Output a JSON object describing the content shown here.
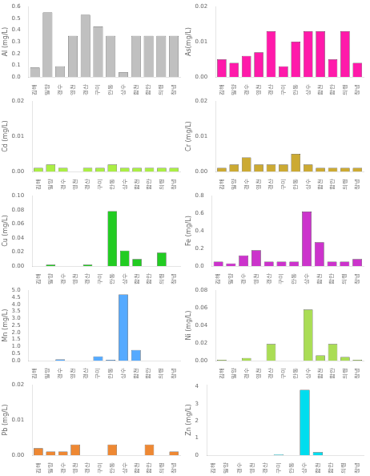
{
  "chart_data": [
    {
      "type": "bar",
      "ylabel": "Al (mg/L)",
      "categories": [
        "김해",
        "밀양",
        "경수",
        "영천",
        "경산",
        "구미",
        "안동",
        "상수",
        "합천",
        "함안",
        "의령",
        "창녕"
      ],
      "values": [
        0.08,
        0.55,
        0.09,
        0.35,
        0.53,
        0.43,
        0.35,
        0.04,
        0.35,
        0.35,
        0.35,
        0.35
      ],
      "color": "#c0c0c0",
      "ylim": [
        0,
        0.6
      ],
      "yticks": [
        {
          "value": 0.0,
          "label": "0.0"
        },
        0.1,
        0.2,
        0.3,
        0.4,
        0.5,
        0.6
      ],
      "grid": false
    },
    {
      "type": "bar",
      "ylabel": "As(mg/L)",
      "categories": [
        "김해",
        "밀양",
        "경수",
        "영천",
        "경산",
        "구미",
        "안동",
        "상수",
        "합천",
        "함안",
        "의령",
        "창녕"
      ],
      "values": [
        0.005,
        0.004,
        0.006,
        0.007,
        0.013,
        0.003,
        0.01,
        0.013,
        0.013,
        0.005,
        0.013,
        0.004
      ],
      "color": "#ff1aaa",
      "ylim": [
        0,
        0.02
      ],
      "yticks": [
        {
          "value": 0.0,
          "label": "0.00"
        },
        0.01,
        0.02
      ],
      "grid": false
    },
    {
      "type": "bar",
      "ylabel": "Cd (mg/L)",
      "categories": [
        "김해",
        "밀양",
        "경수",
        "영천",
        "경산",
        "구미",
        "안동",
        "상수",
        "합천",
        "함안",
        "의령",
        "창녕"
      ],
      "values": [
        0.001,
        0.002,
        0.001,
        0.0,
        0.001,
        0.001,
        0.002,
        0.001,
        0.001,
        0.001,
        0.001,
        0.001
      ],
      "color": "#aaee44",
      "ylim": [
        0,
        0.02
      ],
      "yticks": [
        {
          "value": 0.0,
          "label": "0.00"
        },
        0.01,
        0.02
      ],
      "grid": false
    },
    {
      "type": "bar",
      "ylabel": "Cr (mg/L)",
      "categories": [
        "김해",
        "밀양",
        "경수",
        "영천",
        "경산",
        "구미",
        "안동",
        "상수",
        "합천",
        "함안",
        "의령",
        "창녕"
      ],
      "values": [
        0.001,
        0.002,
        0.004,
        0.002,
        0.002,
        0.002,
        0.005,
        0.002,
        0.001,
        0.001,
        0.001,
        0.001
      ],
      "color": "#ccaa33",
      "ylim": [
        0,
        0.02
      ],
      "yticks": [
        {
          "value": 0.0,
          "label": "0.00"
        },
        0.01,
        0.02
      ],
      "grid": false
    },
    {
      "type": "bar",
      "ylabel": "Cu (mg/L)",
      "categories": [
        "김해",
        "밀양",
        "경수",
        "영천",
        "경산",
        "구미",
        "안동",
        "상수",
        "합천",
        "함안",
        "의령",
        "창녕"
      ],
      "values": [
        0.0,
        0.002,
        0.0,
        0.0,
        0.002,
        0.0,
        0.078,
        0.022,
        0.01,
        0.0,
        0.019,
        0.0
      ],
      "color": "#22cc22",
      "ylim": [
        0,
        0.1
      ],
      "yticks": [
        {
          "value": 0.0,
          "label": "0.00"
        },
        0.02,
        0.04,
        0.06,
        0.08,
        {
          "value": 0.1,
          "label": "0.10"
        }
      ],
      "grid": false
    },
    {
      "type": "bar",
      "ylabel": "Fe (mg/L)",
      "categories": [
        "김해",
        "밀양",
        "경수",
        "영천",
        "경산",
        "구미",
        "안동",
        "상수",
        "합천",
        "함안",
        "의령",
        "창녕"
      ],
      "values": [
        0.05,
        0.03,
        0.12,
        0.18,
        0.05,
        0.05,
        0.05,
        0.62,
        0.27,
        0.05,
        0.05,
        0.08
      ],
      "color": "#cc33cc",
      "ylim": [
        0,
        0.8
      ],
      "yticks": [
        {
          "value": 0.0,
          "label": "0.0"
        },
        0.2,
        0.4,
        0.6,
        0.8
      ],
      "grid": false
    },
    {
      "type": "bar",
      "ylabel": "Mn (mg/L)",
      "categories": [
        "김해",
        "밀양",
        "경수",
        "영천",
        "경산",
        "구미",
        "안동",
        "상수",
        "합천",
        "함안",
        "의령",
        "창녕"
      ],
      "values": [
        0.0,
        0.0,
        0.08,
        0.0,
        0.0,
        0.3,
        0.05,
        4.7,
        0.75,
        0.0,
        0.0,
        0.0
      ],
      "color": "#55aaff",
      "ylim": [
        0,
        5.0
      ],
      "yticks": [
        {
          "value": 0.0,
          "label": "0.0"
        },
        0.5,
        {
          "value": 1.0,
          "label": "1.0"
        },
        1.5,
        {
          "value": 2.0,
          "label": "2.0"
        },
        2.5,
        {
          "value": 3.0,
          "label": "3.0"
        },
        3.5,
        {
          "value": 4.0,
          "label": "4.0"
        },
        4.5,
        {
          "value": 5.0,
          "label": "5.0"
        }
      ],
      "grid": false
    },
    {
      "type": "bar",
      "ylabel": "Ni (mg/L)",
      "categories": [
        "김해",
        "밀양",
        "경수",
        "영천",
        "경산",
        "구미",
        "안동",
        "상수",
        "합천",
        "함안",
        "의령",
        "창녕"
      ],
      "values": [
        0.001,
        0.0,
        0.003,
        0.0,
        0.019,
        0.0,
        0.0,
        0.058,
        0.006,
        0.019,
        0.004,
        0.001
      ],
      "color": "#aadd55",
      "ylim": [
        0,
        0.08
      ],
      "yticks": [
        {
          "value": 0.0,
          "label": "0.00"
        },
        0.02,
        0.04,
        0.06,
        0.08
      ],
      "grid": false
    },
    {
      "type": "bar",
      "ylabel": "Pb (mg/L)",
      "categories": [
        "김해",
        "밀양",
        "경수",
        "영천",
        "경산",
        "구미",
        "안동",
        "상수",
        "합천",
        "함안",
        "의령",
        "창녕"
      ],
      "values": [
        0.002,
        0.001,
        0.001,
        0.003,
        0.0,
        0.0,
        0.003,
        0.0,
        0.0,
        0.003,
        0.0,
        0.001
      ],
      "color": "#ee8833",
      "ylim": [
        0,
        0.02
      ],
      "yticks": [
        {
          "value": 0.0,
          "label": "0.00"
        },
        0.01,
        0.02
      ],
      "grid": false
    },
    {
      "type": "bar",
      "ylabel": "Zn (mg/L)",
      "categories": [
        "김해",
        "밀양",
        "경수",
        "영천",
        "경산",
        "구미",
        "안동",
        "상수",
        "합천",
        "함안",
        "의령",
        "창녕"
      ],
      "values": [
        0.0,
        0.0,
        0.0,
        0.0,
        0.0,
        0.04,
        0.0,
        3.8,
        0.18,
        0.005,
        0.005,
        0.005
      ],
      "color": "#00ddee",
      "ylim": [
        0,
        4.1
      ],
      "yticks": [
        0,
        1,
        2,
        3,
        4
      ],
      "grid": false
    }
  ]
}
